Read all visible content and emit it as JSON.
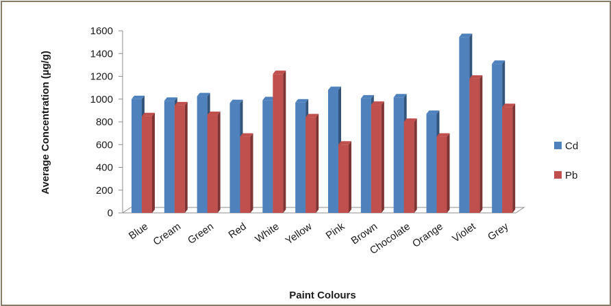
{
  "chart_data": {
    "type": "bar",
    "xlabel": "Paint Colours",
    "ylabel": "Average Concentration (µg/g)",
    "ylim": [
      0,
      1600
    ],
    "yticks": [
      "0",
      "200",
      "400",
      "600",
      "800",
      "1000",
      "1200",
      "1400",
      "1600"
    ],
    "categories": [
      "Blue",
      "Cream",
      "Green",
      "Red",
      "White",
      "Yellow",
      "Pink",
      "Brown",
      "Chocolate",
      "Orange",
      "Violet",
      "Grey"
    ],
    "series": [
      {
        "name": "Cd",
        "color": "#4f81bd",
        "values": [
          1000,
          985,
          1025,
          965,
          990,
          970,
          1080,
          1005,
          1015,
          870,
          1545,
          1310
        ]
      },
      {
        "name": "Pb",
        "color": "#c0504d",
        "values": [
          850,
          945,
          860,
          670,
          1220,
          840,
          600,
          950,
          800,
          670,
          1180,
          930
        ]
      }
    ],
    "legend_position": "right",
    "grid": false,
    "style": "3d-clustered-column"
  }
}
